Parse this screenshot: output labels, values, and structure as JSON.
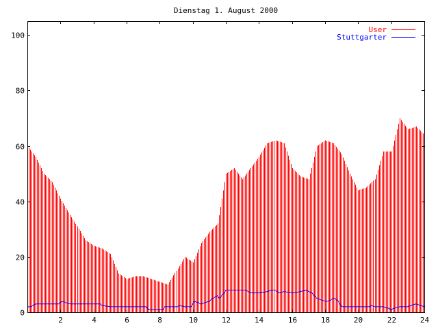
{
  "chart_data": {
    "type": "bar",
    "title": "Dienstag 1. August 2000",
    "xlabel": "",
    "ylabel": "",
    "xlim": [
      0,
      24
    ],
    "ylim": [
      0,
      105
    ],
    "xticks": [
      2,
      4,
      6,
      8,
      10,
      12,
      14,
      16,
      18,
      20,
      22,
      24
    ],
    "yticks": [
      0,
      20,
      40,
      60,
      80,
      100
    ],
    "x_tick_labels": [
      "2",
      "4",
      "6",
      "8",
      "10",
      "12",
      "14",
      "16",
      "18",
      "20",
      "22",
      "24"
    ],
    "y_tick_labels": [
      "0",
      "20",
      "40",
      "60",
      "80",
      "100"
    ],
    "legend_position": "top-right",
    "grid": false,
    "colors": {
      "User": "#ff0000",
      "Stuttgarter": "#0000ff"
    },
    "series": [
      {
        "name": "User",
        "style": "impulses",
        "x": [
          0,
          0.5,
          1,
          1.5,
          2,
          2.5,
          3,
          3.5,
          4,
          4.5,
          5,
          5.5,
          6,
          6.5,
          7,
          7.5,
          8,
          8.5,
          9,
          9.5,
          10,
          10.5,
          11,
          11.5,
          12,
          12.5,
          13,
          13.5,
          14,
          14.5,
          15,
          15.5,
          16,
          16.5,
          17,
          17.5,
          18,
          18.5,
          19,
          19.5,
          20,
          20.5,
          21,
          21.5,
          22,
          22.5,
          23,
          23.5,
          24
        ],
        "values": [
          60,
          56,
          50,
          47,
          41,
          36,
          31,
          26,
          24,
          23,
          21,
          14,
          12,
          13,
          13,
          12,
          11,
          10,
          15,
          20,
          18,
          25,
          29,
          32,
          50,
          52,
          48,
          52,
          56,
          61,
          62,
          61,
          52,
          49,
          48,
          60,
          62,
          61,
          57,
          50,
          44,
          45,
          48,
          58,
          58,
          70,
          66,
          67,
          64
        ]
      },
      {
        "name": "Stuttgarter",
        "style": "lines",
        "x": [
          0,
          0.2,
          0.5,
          1,
          1.5,
          1.9,
          2,
          2.1,
          2.3,
          2.6,
          3,
          3.5,
          4,
          4.4,
          4.5,
          5,
          6,
          7,
          7.2,
          7.3,
          8,
          8.2,
          8.3,
          9,
          9.1,
          9.2,
          9.5,
          9.9,
          10,
          10.1,
          10.5,
          11,
          11.2,
          11.5,
          11.6,
          11.9,
          12,
          12.5,
          13,
          13.2,
          13.5,
          14,
          14.1,
          14.5,
          14.8,
          15,
          15.2,
          15.3,
          15.5,
          16,
          16.2,
          16.5,
          16.9,
          17,
          17.2,
          17.5,
          18,
          18.2,
          18.5,
          18.6,
          18.8,
          19,
          20,
          20.5,
          20.7,
          20.8,
          21,
          21.5,
          21.8,
          22,
          22.2,
          22.5,
          22.8,
          23,
          23.2,
          23.5,
          24
        ],
        "values": [
          2,
          2,
          3,
          3,
          3,
          3,
          3.5,
          4,
          3.5,
          3,
          3,
          3,
          3,
          3,
          2.5,
          2,
          2,
          2,
          2,
          1,
          1,
          1,
          2,
          2,
          2,
          2.5,
          2,
          2,
          3,
          4,
          3,
          4,
          5,
          6,
          5,
          7,
          8,
          8,
          8,
          8,
          7,
          7,
          7,
          7.5,
          8,
          8,
          7,
          7,
          7.5,
          7,
          7,
          7.5,
          8,
          7.5,
          7,
          5,
          4,
          4,
          5,
          5,
          4,
          2,
          2,
          2,
          2,
          2.5,
          2,
          2,
          1.5,
          1,
          1.5,
          2,
          2,
          2,
          2.5,
          3,
          2
        ]
      }
    ]
  }
}
